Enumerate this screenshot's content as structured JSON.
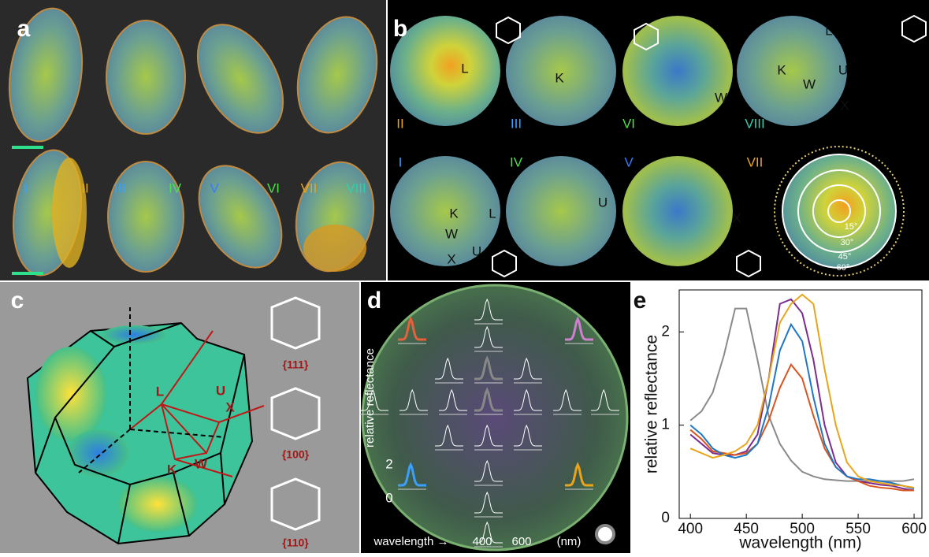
{
  "panels": {
    "a": {
      "label": "a",
      "numerals": [
        "I",
        "II",
        "III",
        "IV",
        "V",
        "VI",
        "VII",
        "VIII"
      ]
    },
    "b": {
      "label": "b",
      "top": [
        {
          "numeral": "II",
          "points": [
            "L"
          ]
        },
        {
          "numeral": "III",
          "points": [
            "K"
          ]
        },
        {
          "numeral": "VI",
          "points": [
            "W"
          ]
        },
        {
          "numeral": "VIII",
          "points": [
            "L",
            "K",
            "W",
            "U",
            "X"
          ]
        }
      ],
      "bottom": [
        {
          "numeral": "I",
          "points": [
            "K",
            "W",
            "L",
            "X",
            "U"
          ]
        },
        {
          "numeral": "IV",
          "points": [
            "U"
          ]
        },
        {
          "numeral": "V",
          "points": [
            "X"
          ]
        },
        {
          "numeral": "VII",
          "angles": [
            "15°",
            "30°",
            "45°",
            "60°"
          ]
        }
      ]
    },
    "c": {
      "label": "c",
      "points": [
        "L",
        "U",
        "X",
        "K",
        "W"
      ],
      "facets": [
        "{111}",
        "{100}",
        "{110}"
      ]
    },
    "d": {
      "label": "d",
      "ylabel": "relative reflectance",
      "yticks": [
        "2",
        "0"
      ],
      "xlabel": "wavelength →",
      "xticks": [
        "400",
        "600"
      ],
      "unit": "(nm)"
    },
    "e": {
      "label": "e"
    }
  },
  "chart_data": {
    "type": "line",
    "xlabel": "wavelength (nm)",
    "ylabel": "relative reflectance",
    "x": [
      400,
      410,
      420,
      430,
      440,
      450,
      460,
      470,
      480,
      490,
      500,
      510,
      520,
      530,
      540,
      550,
      560,
      570,
      580,
      590,
      600
    ],
    "series": [
      {
        "color": "#8a8a8a",
        "values": [
          1.05,
          1.15,
          1.35,
          1.75,
          2.25,
          2.25,
          1.7,
          1.1,
          0.8,
          0.62,
          0.5,
          0.45,
          0.42,
          0.41,
          0.4,
          0.4,
          0.4,
          0.4,
          0.4,
          0.4,
          0.42
        ]
      },
      {
        "color": "#7b2d8e",
        "values": [
          0.9,
          0.8,
          0.7,
          0.68,
          0.68,
          0.72,
          0.9,
          1.5,
          2.3,
          2.35,
          2.2,
          1.7,
          1.0,
          0.6,
          0.45,
          0.4,
          0.38,
          0.36,
          0.35,
          0.32,
          0.3
        ]
      },
      {
        "color": "#d9541e",
        "values": [
          0.95,
          0.85,
          0.72,
          0.7,
          0.68,
          0.7,
          0.8,
          1.05,
          1.4,
          1.65,
          1.5,
          1.1,
          0.75,
          0.55,
          0.45,
          0.4,
          0.35,
          0.33,
          0.32,
          0.3,
          0.3
        ]
      },
      {
        "color": "#1f77c4",
        "values": [
          1.0,
          0.9,
          0.75,
          0.68,
          0.65,
          0.68,
          0.8,
          1.2,
          1.8,
          2.08,
          1.9,
          1.3,
          0.8,
          0.55,
          0.45,
          0.42,
          0.42,
          0.4,
          0.38,
          0.35,
          0.32
        ]
      },
      {
        "color": "#e8a51c",
        "values": [
          0.75,
          0.7,
          0.65,
          0.68,
          0.72,
          0.8,
          1.0,
          1.5,
          2.1,
          2.3,
          2.4,
          2.3,
          1.6,
          1.0,
          0.6,
          0.45,
          0.4,
          0.38,
          0.36,
          0.35,
          0.33
        ]
      }
    ],
    "xlim": [
      390,
      607
    ],
    "ylim": [
      0,
      2.45
    ],
    "xticks": [
      400,
      450,
      500,
      550,
      600
    ],
    "yticks": [
      0,
      1,
      2
    ]
  }
}
